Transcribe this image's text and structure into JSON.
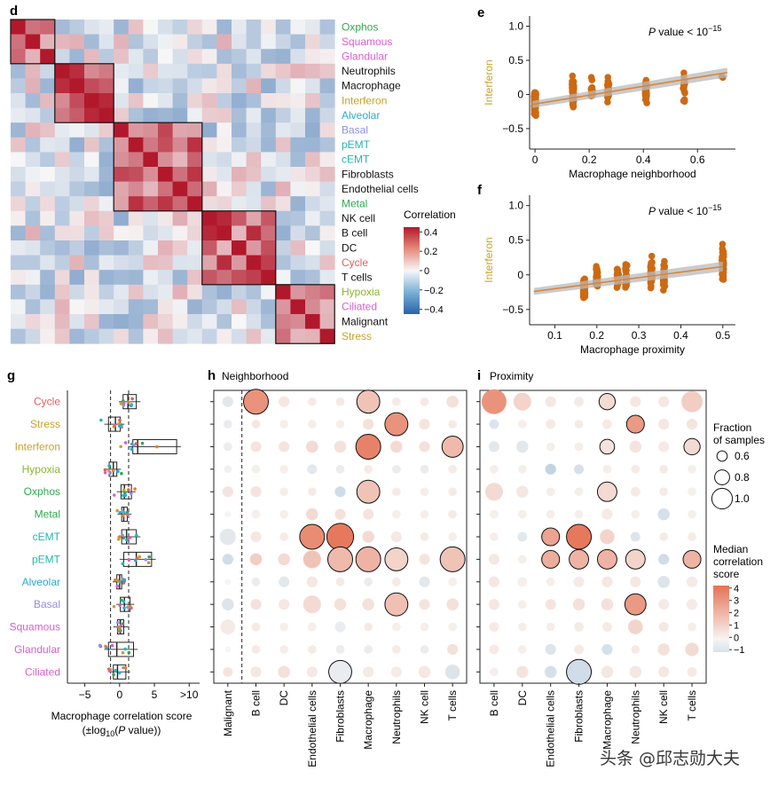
{
  "panel_letters": {
    "d": "d",
    "e": "e",
    "f": "f",
    "g": "g",
    "h": "h",
    "i": "i"
  },
  "programs": [
    {
      "name": "Oxphos",
      "color": "#2fa84f"
    },
    {
      "name": "Squamous",
      "color": "#d65fcf"
    },
    {
      "name": "Glandular",
      "color": "#d65fcf"
    },
    {
      "name": "Neutrophils",
      "color": "#111111"
    },
    {
      "name": "Macrophage",
      "color": "#111111"
    },
    {
      "name": "Interferon",
      "color": "#c9a227"
    },
    {
      "name": "Alveolar",
      "color": "#2aa8d8"
    },
    {
      "name": "Basal",
      "color": "#8f8fe0"
    },
    {
      "name": "pEMT",
      "color": "#26b5b0"
    },
    {
      "name": "cEMT",
      "color": "#26b5b0"
    },
    {
      "name": "Fibroblasts",
      "color": "#111111"
    },
    {
      "name": "Endothelial cells",
      "color": "#111111"
    },
    {
      "name": "Metal",
      "color": "#2fa84f"
    },
    {
      "name": "NK cell",
      "color": "#111111"
    },
    {
      "name": "B cell",
      "color": "#111111"
    },
    {
      "name": "DC",
      "color": "#111111"
    },
    {
      "name": "Cycle",
      "color": "#e35d5d"
    },
    {
      "name": "T cells",
      "color": "#111111"
    },
    {
      "name": "Hypoxia",
      "color": "#8cb52e"
    },
    {
      "name": "Ciliated",
      "color": "#d65fcf"
    },
    {
      "name": "Malignant",
      "color": "#111111"
    },
    {
      "name": "Stress",
      "color": "#c9a227"
    }
  ],
  "heatmap": {
    "legend_title": "Correlation",
    "legend_ticks": [
      "0.4",
      "0.2",
      "0",
      "−0.2",
      "−0.4"
    ],
    "legend_tick_values": [
      0.4,
      0.2,
      0,
      -0.2,
      -0.4
    ],
    "color_low": "#2b63a8",
    "color_mid": "#f7f7f7",
    "color_high": "#b2182b",
    "clusters": [
      [
        0,
        2
      ],
      [
        3,
        6
      ],
      [
        7,
        12
      ],
      [
        13,
        17
      ],
      [
        18,
        21
      ]
    ]
  },
  "scatter_e": {
    "ylabel": "Interferon",
    "xlabel": "Macrophage neighborhood",
    "annotation_italic": "P",
    "annotation_rest": " value < 10",
    "annotation_exp": "−15",
    "x_ticks": [
      "0",
      "0.2",
      "0.4",
      "0.6"
    ],
    "x_tick_values": [
      0,
      0.2,
      0.4,
      0.6
    ],
    "y_ticks": [
      "1.0",
      "0.5",
      "0",
      "−0.5"
    ],
    "y_tick_values": [
      1.0,
      0.5,
      0,
      -0.5
    ],
    "xlim": [
      -0.02,
      0.74
    ],
    "ylim": [
      -0.8,
      1.15
    ],
    "fit": {
      "intercept": -0.14,
      "slope": 0.65
    },
    "point_color": "#cc6a14"
  },
  "scatter_f": {
    "ylabel": "Interferon",
    "xlabel": "Macrophage proximity",
    "annotation_italic": "P",
    "annotation_rest": " value < 10",
    "annotation_exp": "−15",
    "x_ticks": [
      "0.1",
      "0.2",
      "0.3",
      "0.4",
      "0.5"
    ],
    "x_tick_values": [
      0.1,
      0.2,
      0.3,
      0.4,
      0.5
    ],
    "y_ticks": [
      "1.0",
      "0.5",
      "0",
      "−0.5"
    ],
    "y_tick_values": [
      1.0,
      0.5,
      0,
      -0.5
    ],
    "xlim": [
      0.04,
      0.53
    ],
    "ylim": [
      -0.72,
      1.15
    ],
    "fit": {
      "intercept": -0.28,
      "slope": 0.8
    },
    "point_color": "#cc6a14"
  },
  "panel_g": {
    "title": "Macrophage correlation score",
    "subtitle_pre": "(±log",
    "subtitle_sub": "10",
    "subtitle_open": "(",
    "subtitle_italic": "P",
    "subtitle_post": " value))",
    "x_ticks": [
      "−5",
      "0",
      "5",
      ">10"
    ],
    "x_tick_values": [
      -5,
      0,
      5,
      10
    ],
    "xlim": [
      -7.5,
      11.5
    ],
    "dashed_at": [
      -1.3,
      1.3
    ],
    "rows": [
      {
        "name": "Cycle",
        "color": "#e35d5d",
        "q1": 0.5,
        "med": 1.2,
        "q3": 2.4
      },
      {
        "name": "Stress",
        "color": "#c9a227",
        "q1": -1.6,
        "med": -0.6,
        "q3": 0.1
      },
      {
        "name": "Interferon",
        "color": "#c9a227",
        "q1": 1.9,
        "med": 2.6,
        "q3": 8.2
      },
      {
        "name": "Hypoxia",
        "color": "#8cb52e",
        "q1": -1.5,
        "med": -0.9,
        "q3": -0.4
      },
      {
        "name": "Oxphos",
        "color": "#2fa84f",
        "q1": 0.2,
        "med": 0.7,
        "q3": 1.7
      },
      {
        "name": "Metal",
        "color": "#2fa84f",
        "q1": 0.3,
        "med": 0.6,
        "q3": 1.1
      },
      {
        "name": "cEMT",
        "color": "#26b5b0",
        "q1": 0.3,
        "med": 1.0,
        "q3": 2.4
      },
      {
        "name": "pEMT",
        "color": "#26b5b0",
        "q1": 0.6,
        "med": 2.4,
        "q3": 4.6
      },
      {
        "name": "Alveolar",
        "color": "#2aa8d8",
        "q1": -0.4,
        "med": 0.0,
        "q3": 0.3
      },
      {
        "name": "Basal",
        "color": "#8f8fe0",
        "q1": 0.1,
        "med": 0.7,
        "q3": 1.5
      },
      {
        "name": "Squamous",
        "color": "#d65fcf",
        "q1": -0.3,
        "med": 0.1,
        "q3": 0.6
      },
      {
        "name": "Glandular",
        "color": "#d65fcf",
        "q1": -1.6,
        "med": -0.4,
        "q3": 2.0
      },
      {
        "name": "Ciliated",
        "color": "#d65fcf",
        "q1": -0.9,
        "med": -0.3,
        "q3": 0.9
      }
    ]
  },
  "panel_h": {
    "title": "Neighborhood",
    "columns": [
      "Malignant",
      "B cell",
      "DC",
      "Endothelial cells",
      "Fibroblasts",
      "Macrophage",
      "Neutrophils",
      "NK cell",
      "T cells"
    ]
  },
  "panel_i": {
    "title": "Proximity",
    "columns": [
      "B cell",
      "DC",
      "Endothelial cells",
      "Fibroblasts",
      "Macrophage",
      "Neutrophils",
      "NK cell",
      "T cells"
    ]
  },
  "bubble_rows": [
    "Cycle",
    "Stress",
    "Interferon",
    "Hypoxia",
    "Oxphos",
    "Metal",
    "cEMT",
    "pEMT",
    "Alveolar",
    "Basal",
    "Squamous",
    "Glandular",
    "Ciliated"
  ],
  "bubble_h_values": [
    [
      -0.3,
      3.0,
      0.4,
      0.3,
      0.3,
      1.5,
      0.3,
      0.3,
      0.6
    ],
    [
      -0.2,
      0.4,
      0.2,
      0.2,
      0.2,
      0.6,
      3.0,
      0.5,
      0.3
    ],
    [
      -0.2,
      0.5,
      0.5,
      0.8,
      0.6,
      3.5,
      0.8,
      0.6,
      1.8
    ],
    [
      -0.1,
      0.2,
      0.2,
      -0.3,
      -0.2,
      0.3,
      -0.2,
      -0.2,
      0.3
    ],
    [
      0.5,
      0.5,
      0.2,
      0.3,
      -0.6,
      1.5,
      0.3,
      0.2,
      0.3
    ],
    [
      0.0,
      0.2,
      0.2,
      0.8,
      0.6,
      0.5,
      0.2,
      0.2,
      0.3
    ],
    [
      -0.3,
      0.4,
      0.3,
      3.2,
      3.8,
      0.8,
      0.4,
      0.3,
      0.2
    ],
    [
      -0.6,
      1.2,
      0.8,
      1.5,
      1.8,
      2.0,
      1.0,
      0.5,
      1.5
    ],
    [
      0.0,
      -0.2,
      -0.3,
      0.4,
      0.3,
      -0.2,
      0.3,
      -0.3,
      0.2
    ],
    [
      -0.4,
      0.6,
      0.4,
      0.8,
      0.6,
      0.6,
      1.6,
      0.5,
      0.6
    ],
    [
      0.3,
      0.3,
      0.2,
      0.2,
      -0.2,
      0.3,
      0.2,
      0.2,
      0.2
    ],
    [
      0.0,
      0.3,
      0.2,
      0.3,
      -0.2,
      -0.2,
      0.3,
      -0.2,
      0.6
    ],
    [
      0.5,
      0.4,
      0.6,
      0.3,
      -0.2,
      0.3,
      0.3,
      0.4,
      -0.4
    ]
  ],
  "bubble_h_fraction": [
    [
      0.55,
      1.0,
      0.55,
      0.45,
      0.45,
      0.95,
      0.45,
      0.45,
      0.6
    ],
    [
      0.45,
      0.45,
      0.45,
      0.45,
      0.45,
      0.55,
      0.95,
      0.55,
      0.45
    ],
    [
      0.45,
      0.55,
      0.55,
      0.6,
      0.6,
      1.0,
      0.6,
      0.55,
      0.9
    ],
    [
      0.4,
      0.45,
      0.45,
      0.5,
      0.45,
      0.45,
      0.45,
      0.45,
      0.45
    ],
    [
      0.55,
      0.55,
      0.45,
      0.45,
      0.55,
      0.95,
      0.45,
      0.45,
      0.45
    ],
    [
      0.3,
      0.45,
      0.45,
      0.6,
      0.55,
      0.55,
      0.45,
      0.45,
      0.45
    ],
    [
      0.75,
      0.55,
      0.45,
      1.0,
      1.05,
      0.6,
      0.55,
      0.45,
      0.45
    ],
    [
      0.55,
      0.6,
      0.6,
      0.8,
      1.0,
      1.0,
      0.95,
      0.55,
      1.0
    ],
    [
      0.3,
      0.45,
      0.55,
      0.55,
      0.45,
      0.45,
      0.45,
      0.55,
      0.45
    ],
    [
      0.6,
      0.55,
      0.55,
      0.8,
      0.6,
      0.6,
      0.95,
      0.55,
      0.6
    ],
    [
      0.7,
      0.45,
      0.45,
      0.45,
      0.55,
      0.45,
      0.45,
      0.45,
      0.45
    ],
    [
      0.3,
      0.45,
      0.45,
      0.45,
      0.45,
      0.45,
      0.45,
      0.45,
      0.55
    ],
    [
      0.5,
      0.55,
      0.6,
      0.55,
      0.95,
      0.55,
      0.55,
      0.6,
      0.7
    ]
  ],
  "bubble_h_outlined": [
    [
      false,
      true,
      false,
      false,
      false,
      true,
      false,
      false,
      false
    ],
    [
      false,
      false,
      false,
      false,
      false,
      false,
      true,
      false,
      false
    ],
    [
      false,
      false,
      false,
      false,
      false,
      true,
      false,
      false,
      true
    ],
    [
      false,
      false,
      false,
      false,
      false,
      false,
      false,
      false,
      false
    ],
    [
      false,
      false,
      false,
      false,
      false,
      true,
      false,
      false,
      false
    ],
    [
      false,
      false,
      false,
      false,
      false,
      false,
      false,
      false,
      false
    ],
    [
      false,
      false,
      false,
      true,
      true,
      false,
      false,
      false,
      false
    ],
    [
      false,
      false,
      false,
      false,
      true,
      true,
      true,
      false,
      true
    ],
    [
      false,
      false,
      false,
      false,
      false,
      false,
      false,
      false,
      false
    ],
    [
      false,
      false,
      false,
      false,
      false,
      false,
      true,
      false,
      false
    ],
    [
      false,
      false,
      false,
      false,
      false,
      false,
      false,
      false,
      false
    ],
    [
      false,
      false,
      false,
      false,
      false,
      false,
      false,
      false,
      false
    ],
    [
      false,
      false,
      false,
      false,
      true,
      false,
      false,
      false,
      false
    ]
  ],
  "bubble_i_values": [
    [
      3.0,
      1.0,
      0.4,
      0.3,
      0.8,
      0.4,
      0.4,
      1.2
    ],
    [
      -0.4,
      0.2,
      0.3,
      0.3,
      0.3,
      2.8,
      0.4,
      0.5
    ],
    [
      -0.3,
      -0.3,
      0.2,
      0.2,
      0.5,
      0.5,
      0.3,
      0.8
    ],
    [
      0.2,
      0.2,
      -0.8,
      -0.5,
      0.2,
      0.3,
      0.3,
      0.2
    ],
    [
      0.8,
      0.4,
      0.2,
      0.2,
      0.8,
      0.3,
      0.3,
      0.2
    ],
    [
      0.2,
      0.2,
      0.2,
      0.2,
      0.3,
      0.2,
      -0.5,
      0.2
    ],
    [
      0.2,
      -0.3,
      2.5,
      3.8,
      1.0,
      -0.4,
      0.3,
      0.3
    ],
    [
      0.4,
      0.2,
      2.2,
      2.0,
      2.0,
      1.0,
      -0.6,
      2.0
    ],
    [
      0.4,
      0.2,
      0.2,
      0.3,
      0.4,
      0.4,
      -0.4,
      0.3
    ],
    [
      0.4,
      0.2,
      0.5,
      0.6,
      0.6,
      2.8,
      0.3,
      0.3
    ],
    [
      0.3,
      0.2,
      0.2,
      0.3,
      0.3,
      1.0,
      0.4,
      0.2
    ],
    [
      0.3,
      0.2,
      -0.4,
      0.3,
      -0.5,
      0.3,
      0.6,
      0.8
    ],
    [
      0.2,
      0.5,
      -0.5,
      -0.6,
      0.4,
      0.4,
      0.4,
      0.3
    ]
  ],
  "bubble_i_fraction": [
    [
      1.0,
      0.8,
      0.55,
      0.5,
      0.75,
      0.55,
      0.55,
      0.9
    ],
    [
      0.5,
      0.45,
      0.5,
      0.45,
      0.5,
      0.8,
      0.55,
      0.55
    ],
    [
      0.55,
      0.6,
      0.45,
      0.45,
      0.7,
      0.6,
      0.55,
      0.75
    ],
    [
      0.45,
      0.45,
      0.55,
      0.5,
      0.45,
      0.45,
      0.45,
      0.45
    ],
    [
      0.8,
      0.6,
      0.45,
      0.45,
      0.85,
      0.5,
      0.45,
      0.45
    ],
    [
      0.45,
      0.45,
      0.45,
      0.45,
      0.55,
      0.45,
      0.6,
      0.45
    ],
    [
      0.45,
      0.5,
      0.8,
      1.0,
      0.7,
      0.5,
      0.45,
      0.45
    ],
    [
      0.55,
      0.45,
      0.8,
      0.85,
      0.85,
      0.85,
      0.55,
      0.8
    ],
    [
      0.55,
      0.5,
      0.45,
      0.55,
      0.55,
      0.55,
      0.6,
      0.55
    ],
    [
      0.55,
      0.45,
      0.55,
      0.6,
      0.6,
      0.9,
      0.55,
      0.55
    ],
    [
      0.5,
      0.45,
      0.45,
      0.5,
      0.5,
      0.7,
      0.5,
      0.45
    ],
    [
      0.5,
      0.45,
      0.55,
      0.5,
      0.55,
      0.45,
      0.6,
      0.65
    ],
    [
      0.45,
      0.6,
      0.6,
      1.0,
      0.6,
      0.6,
      0.55,
      0.5
    ]
  ],
  "bubble_i_outlined": [
    [
      false,
      false,
      false,
      false,
      true,
      false,
      false,
      false
    ],
    [
      false,
      false,
      false,
      false,
      false,
      true,
      false,
      false
    ],
    [
      false,
      false,
      false,
      false,
      true,
      false,
      false,
      true
    ],
    [
      false,
      false,
      false,
      false,
      false,
      false,
      false,
      false
    ],
    [
      false,
      false,
      false,
      false,
      true,
      false,
      false,
      false
    ],
    [
      false,
      false,
      false,
      false,
      false,
      false,
      false,
      false
    ],
    [
      false,
      false,
      true,
      true,
      false,
      false,
      false,
      false
    ],
    [
      false,
      false,
      true,
      true,
      true,
      true,
      false,
      true
    ],
    [
      false,
      false,
      false,
      false,
      false,
      false,
      false,
      false
    ],
    [
      false,
      false,
      false,
      false,
      false,
      true,
      false,
      false
    ],
    [
      false,
      false,
      false,
      false,
      false,
      false,
      false,
      false
    ],
    [
      false,
      false,
      false,
      false,
      false,
      false,
      false,
      false
    ],
    [
      false,
      false,
      false,
      true,
      false,
      false,
      false,
      false
    ]
  ],
  "size_legend": {
    "title_line1": "Fraction",
    "title_line2": "of samples",
    "labels": [
      "0.6",
      "0.8",
      "1.0"
    ],
    "values": [
      0.6,
      0.8,
      1.0
    ]
  },
  "color_legend": {
    "title_line1": "Median",
    "title_line2": "correlation",
    "title_line3": "score",
    "labels": [
      "4",
      "3",
      "2",
      "1",
      "0",
      "−1"
    ],
    "values": [
      4,
      3,
      2,
      1,
      0,
      -1
    ]
  },
  "watermark": "头条 @邱志勋大夫",
  "chart_data": [
    {
      "type": "heatmap",
      "title": "d",
      "rows": [
        "Oxphos",
        "Squamous",
        "Glandular",
        "Neutrophils",
        "Macrophage",
        "Interferon",
        "Alveolar",
        "Basal",
        "pEMT",
        "cEMT",
        "Fibroblasts",
        "Endothelial cells",
        "Metal",
        "NK cell",
        "B cell",
        "DC",
        "Cycle",
        "T cells",
        "Hypoxia",
        "Ciliated",
        "Malignant",
        "Stress"
      ],
      "colorbar": {
        "label": "Correlation",
        "range": [
          -0.4,
          0.4
        ]
      }
    },
    {
      "type": "scatter",
      "title": "e",
      "xlabel": "Macrophage neighborhood",
      "ylabel": "Interferon",
      "xlim": [
        -0.02,
        0.74
      ],
      "ylim": [
        -0.8,
        1.15
      ],
      "x_columns": [
        0.0,
        0.14,
        0.21,
        0.27,
        0.41,
        0.55,
        0.69
      ],
      "fit": {
        "intercept": -0.14,
        "slope": 0.65
      }
    },
    {
      "type": "scatter",
      "title": "f",
      "xlabel": "Macrophage proximity",
      "ylabel": "Interferon",
      "xlim": [
        0.04,
        0.53
      ],
      "ylim": [
        -0.72,
        1.15
      ],
      "x_columns": [
        0.17,
        0.2,
        0.25,
        0.27,
        0.33,
        0.36,
        0.5
      ],
      "fit": {
        "intercept": -0.28,
        "slope": 0.8
      }
    }
  ]
}
